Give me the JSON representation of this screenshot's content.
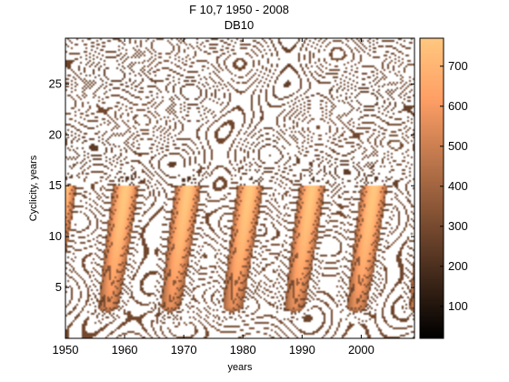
{
  "chart_data": {
    "type": "heatmap",
    "title": "F 10,7  1950 - 2008",
    "subtitle": "DB10",
    "xlabel": "years",
    "ylabel": "Cyclicity, years",
    "xlim": [
      1950,
      2009
    ],
    "ylim": [
      0,
      29.5
    ],
    "x_ticks": [
      1950,
      1960,
      1970,
      1980,
      1990,
      2000
    ],
    "y_ticks": [
      5,
      10,
      15,
      20,
      25
    ],
    "colorbar": {
      "colormap": "copper",
      "range": [
        20,
        770
      ],
      "ticks": [
        100,
        200,
        300,
        400,
        500,
        600,
        700
      ]
    },
    "dominant_band": {
      "period_years": 10.5,
      "period_range": [
        3,
        15
      ],
      "cycle_maxima_years": [
        1948,
        1958,
        1969,
        1980,
        1990,
        2001
      ],
      "peak_value": 760
    },
    "contour_lines": "dense black contours with white boundary contours"
  }
}
